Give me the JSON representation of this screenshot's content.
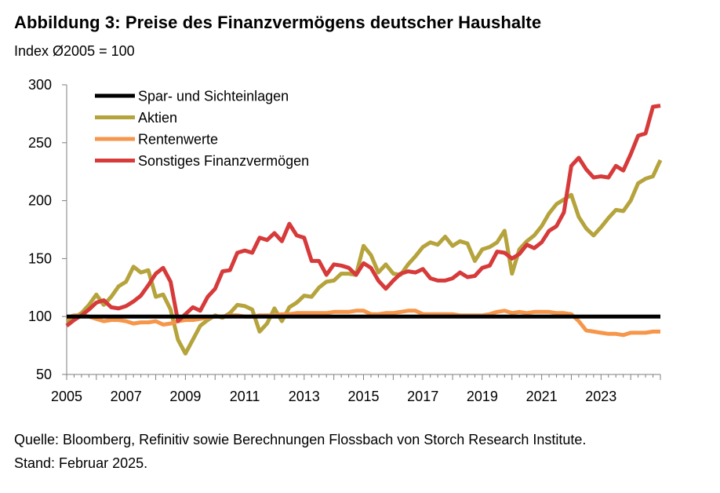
{
  "title": "Abbildung 3: Preise des Finanzvermögens deutscher Haushalte",
  "subtitle": "Index Ø2005 = 100",
  "footnote": {
    "source": "Quelle: Bloomberg, Refinitiv sowie Berechnungen Flossbach von Storch Research Institute.",
    "stand": "Stand: Februar 2025."
  },
  "chart_data": {
    "type": "line",
    "title": "Preise des Finanzvermögens deutscher Haushalte",
    "ylabel": "Index Ø2005 = 100",
    "xlim": [
      2005,
      2025
    ],
    "ylim": [
      50,
      300
    ],
    "yticks": [
      50,
      100,
      150,
      200,
      250,
      300
    ],
    "xticks": [
      "2005",
      "2007",
      "2009",
      "2011",
      "2013",
      "2015",
      "2017",
      "2019",
      "2021",
      "2023"
    ],
    "legend_position": "top-left",
    "series": [
      {
        "name": "Spar- und Sichteinlagen",
        "color": "#000000",
        "x": [
          2005,
          2025
        ],
        "y": [
          100,
          100
        ]
      },
      {
        "name": "Aktien",
        "color": "#b5a33c",
        "x": [
          2005,
          2005.25,
          2005.5,
          2005.75,
          2006,
          2006.25,
          2006.5,
          2006.75,
          2007,
          2007.25,
          2007.5,
          2007.75,
          2008,
          2008.25,
          2008.5,
          2008.75,
          2009,
          2009.25,
          2009.5,
          2009.75,
          2010,
          2010.25,
          2010.5,
          2010.75,
          2011,
          2011.25,
          2011.5,
          2011.75,
          2012,
          2012.25,
          2012.5,
          2012.75,
          2013,
          2013.25,
          2013.5,
          2013.75,
          2014,
          2014.25,
          2014.5,
          2014.75,
          2015,
          2015.25,
          2015.5,
          2015.75,
          2016,
          2016.25,
          2016.5,
          2016.75,
          2017,
          2017.25,
          2017.5,
          2017.75,
          2018,
          2018.25,
          2018.5,
          2018.75,
          2019,
          2019.25,
          2019.5,
          2019.75,
          2020,
          2020.25,
          2020.5,
          2020.75,
          2021,
          2021.25,
          2021.5,
          2021.75,
          2022,
          2022.25,
          2022.5,
          2022.75,
          2023,
          2023.25,
          2023.5,
          2023.75,
          2024,
          2024.25,
          2024.5,
          2024.75,
          2025
        ],
        "y": [
          96,
          99,
          103,
          110,
          119,
          110,
          117,
          126,
          130,
          143,
          138,
          140,
          117,
          119,
          106,
          80,
          68,
          80,
          92,
          97,
          101,
          99,
          103,
          110,
          109,
          106,
          87,
          94,
          107,
          96,
          108,
          112,
          118,
          117,
          125,
          130,
          131,
          137,
          137,
          136,
          161,
          153,
          138,
          145,
          137,
          136,
          145,
          152,
          160,
          164,
          162,
          169,
          161,
          165,
          163,
          148,
          158,
          160,
          164,
          174,
          137,
          158,
          165,
          170,
          178,
          189,
          197,
          201,
          205,
          186,
          176,
          170,
          177,
          185,
          192,
          191,
          200,
          215,
          219,
          221,
          235
        ]
      },
      {
        "name": "Rentenwerte",
        "color": "#f5964a",
        "x": [
          2005,
          2005.25,
          2005.5,
          2005.75,
          2006,
          2006.25,
          2006.5,
          2006.75,
          2007,
          2007.25,
          2007.5,
          2007.75,
          2008,
          2008.25,
          2008.5,
          2008.75,
          2009,
          2009.25,
          2009.5,
          2009.75,
          2010,
          2010.25,
          2010.5,
          2010.75,
          2011,
          2011.25,
          2011.5,
          2011.75,
          2012,
          2012.25,
          2012.5,
          2012.75,
          2013,
          2013.25,
          2013.5,
          2013.75,
          2014,
          2014.25,
          2014.5,
          2014.75,
          2015,
          2015.25,
          2015.5,
          2015.75,
          2016,
          2016.25,
          2016.5,
          2016.75,
          2017,
          2017.25,
          2017.5,
          2017.75,
          2018,
          2018.25,
          2018.5,
          2018.75,
          2019,
          2019.25,
          2019.5,
          2019.75,
          2020,
          2020.25,
          2020.5,
          2020.75,
          2021,
          2021.25,
          2021.5,
          2021.75,
          2022,
          2022.25,
          2022.5,
          2022.75,
          2023,
          2023.25,
          2023.5,
          2023.75,
          2024,
          2024.25,
          2024.5,
          2024.75,
          2025
        ],
        "y": [
          99,
          101,
          101,
          100,
          98,
          96,
          97,
          97,
          96,
          94,
          95,
          95,
          96,
          93,
          94,
          96,
          97,
          97,
          98,
          99,
          100,
          100,
          101,
          101,
          100,
          100,
          101,
          101,
          101,
          102,
          102,
          103,
          103,
          103,
          103,
          103,
          104,
          104,
          104,
          105,
          105,
          102,
          102,
          103,
          103,
          104,
          105,
          105,
          102,
          102,
          102,
          102,
          102,
          101,
          101,
          101,
          101,
          102,
          104,
          105,
          103,
          104,
          103,
          104,
          104,
          104,
          103,
          103,
          102,
          96,
          88,
          87,
          86,
          85,
          85,
          84,
          86,
          86,
          86,
          87,
          87
        ]
      },
      {
        "name": "Sonstiges Finanzvermögen",
        "color": "#d63a3a",
        "x": [
          2005,
          2005.25,
          2005.5,
          2005.75,
          2006,
          2006.25,
          2006.5,
          2006.75,
          2007,
          2007.25,
          2007.5,
          2007.75,
          2008,
          2008.25,
          2008.5,
          2008.75,
          2009,
          2009.25,
          2009.5,
          2009.75,
          2010,
          2010.25,
          2010.5,
          2010.75,
          2011,
          2011.25,
          2011.5,
          2011.75,
          2012,
          2012.25,
          2012.5,
          2012.75,
          2013,
          2013.25,
          2013.5,
          2013.75,
          2014,
          2014.25,
          2014.5,
          2014.75,
          2015,
          2015.25,
          2015.5,
          2015.75,
          2016,
          2016.25,
          2016.5,
          2016.75,
          2017,
          2017.25,
          2017.5,
          2017.75,
          2018,
          2018.25,
          2018.5,
          2018.75,
          2019,
          2019.25,
          2019.5,
          2019.75,
          2020,
          2020.25,
          2020.5,
          2020.75,
          2021,
          2021.25,
          2021.5,
          2021.75,
          2022,
          2022.25,
          2022.5,
          2022.75,
          2023,
          2023.25,
          2023.5,
          2023.75,
          2024,
          2024.25,
          2024.5,
          2024.75,
          2025
        ],
        "y": [
          92,
          97,
          101,
          106,
          112,
          114,
          108,
          107,
          109,
          113,
          118,
          127,
          137,
          142,
          130,
          96,
          102,
          108,
          105,
          117,
          124,
          139,
          140,
          155,
          157,
          155,
          168,
          166,
          172,
          165,
          180,
          170,
          168,
          148,
          148,
          136,
          145,
          144,
          142,
          136,
          146,
          142,
          131,
          124,
          131,
          137,
          139,
          138,
          141,
          133,
          131,
          131,
          133,
          138,
          134,
          135,
          142,
          144,
          156,
          155,
          150,
          154,
          162,
          159,
          164,
          174,
          178,
          190,
          230,
          237,
          227,
          220,
          221,
          220,
          230,
          226,
          240,
          256,
          258,
          281,
          282
        ]
      }
    ]
  }
}
